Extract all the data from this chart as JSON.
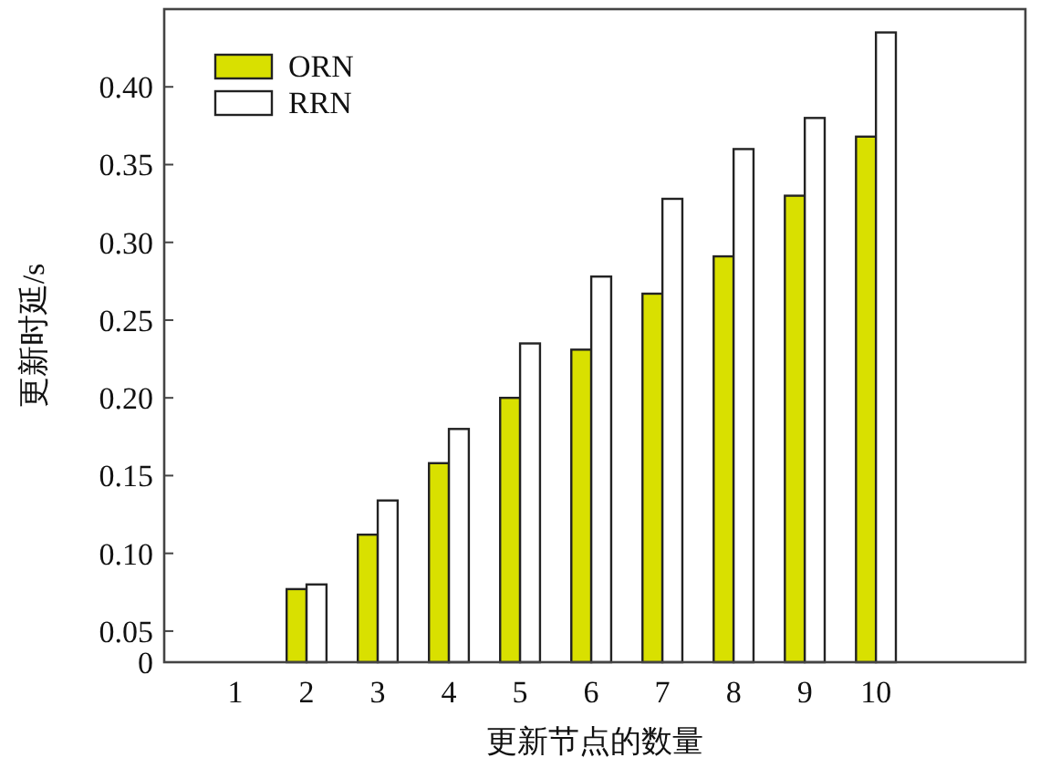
{
  "chart_data": {
    "type": "bar",
    "xlabel": "更新节点的数量",
    "ylabel": "更新时延/s",
    "categories": [
      "1",
      "2",
      "3",
      "4",
      "5",
      "6",
      "7",
      "8",
      "9",
      "10"
    ],
    "series": [
      {
        "name": "ORN",
        "color": "#d9e000",
        "values": [
          null,
          0.077,
          0.112,
          0.158,
          0.2,
          0.231,
          0.267,
          0.291,
          0.33,
          0.368
        ]
      },
      {
        "name": "RRN",
        "color": "#ffffff",
        "values": [
          null,
          0.08,
          0.134,
          0.18,
          0.235,
          0.278,
          0.328,
          0.36,
          0.38,
          0.435
        ]
      }
    ],
    "ylim": [
      0.03,
      0.45
    ],
    "yticks": [
      {
        "value": 0.03,
        "label": "0"
      },
      0.05,
      {
        "value": 0.1,
        "label": "0.10"
      },
      0.15,
      {
        "value": 0.2,
        "label": "0.20"
      },
      0.25,
      {
        "value": 0.3,
        "label": "0.30"
      },
      0.35,
      {
        "value": 0.4,
        "label": "0.40"
      }
    ],
    "legend": "top left"
  }
}
